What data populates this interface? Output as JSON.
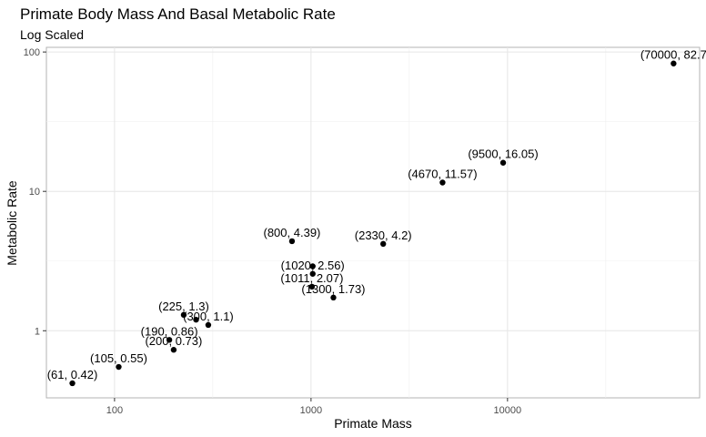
{
  "chart_data": {
    "type": "scatter",
    "title": "Primate Body Mass And Basal Metabolic Rate",
    "subtitle": "Log Scaled",
    "xlabel": "Primate Mass",
    "ylabel": "Metabolic Rate",
    "x_scale": "log10",
    "y_scale": "log10",
    "xlim": [
      45,
      95000
    ],
    "ylim": [
      0.33,
      108
    ],
    "x_ticks": [
      {
        "value": 100,
        "label": "100"
      },
      {
        "value": 1000,
        "label": "1000"
      },
      {
        "value": 10000,
        "label": "10000"
      }
    ],
    "y_ticks": [
      {
        "value": 1,
        "label": "1"
      },
      {
        "value": 10,
        "label": "10"
      },
      {
        "value": 100,
        "label": "100"
      }
    ],
    "grid": true,
    "point_color": "#000000",
    "points": [
      {
        "x": 61,
        "y": 0.42,
        "label": "(61, 0.42)"
      },
      {
        "x": 105,
        "y": 0.55,
        "label": "(105, 0.55)"
      },
      {
        "x": 190,
        "y": 0.86,
        "label": "(190, 0.86)"
      },
      {
        "x": 200,
        "y": 0.73,
        "label": "(200, 0.73)"
      },
      {
        "x": 225,
        "y": 1.3,
        "label": "(225, 1.3)"
      },
      {
        "x": 260,
        "y": 1.2,
        "label": ""
      },
      {
        "x": 300,
        "y": 1.1,
        "label": "(300, 1.1)"
      },
      {
        "x": 800,
        "y": 4.39,
        "label": "(800, 4.39)"
      },
      {
        "x": 1011,
        "y": 2.07,
        "label": "(1011, 2.07)"
      },
      {
        "x": 1020,
        "y": 2.56,
        "label": "(1020, 2.56)"
      },
      {
        "x": 1020,
        "y": 2.9,
        "label": ""
      },
      {
        "x": 1300,
        "y": 1.73,
        "label": "(1300, 1.73)"
      },
      {
        "x": 2330,
        "y": 4.2,
        "label": "(2330, 4.2)"
      },
      {
        "x": 4670,
        "y": 11.57,
        "label": "(4670, 11.57)"
      },
      {
        "x": 9500,
        "y": 16.05,
        "label": "(9500, 16.05)"
      },
      {
        "x": 70000,
        "y": 82.7,
        "label": "(70000, 82.7"
      }
    ]
  }
}
